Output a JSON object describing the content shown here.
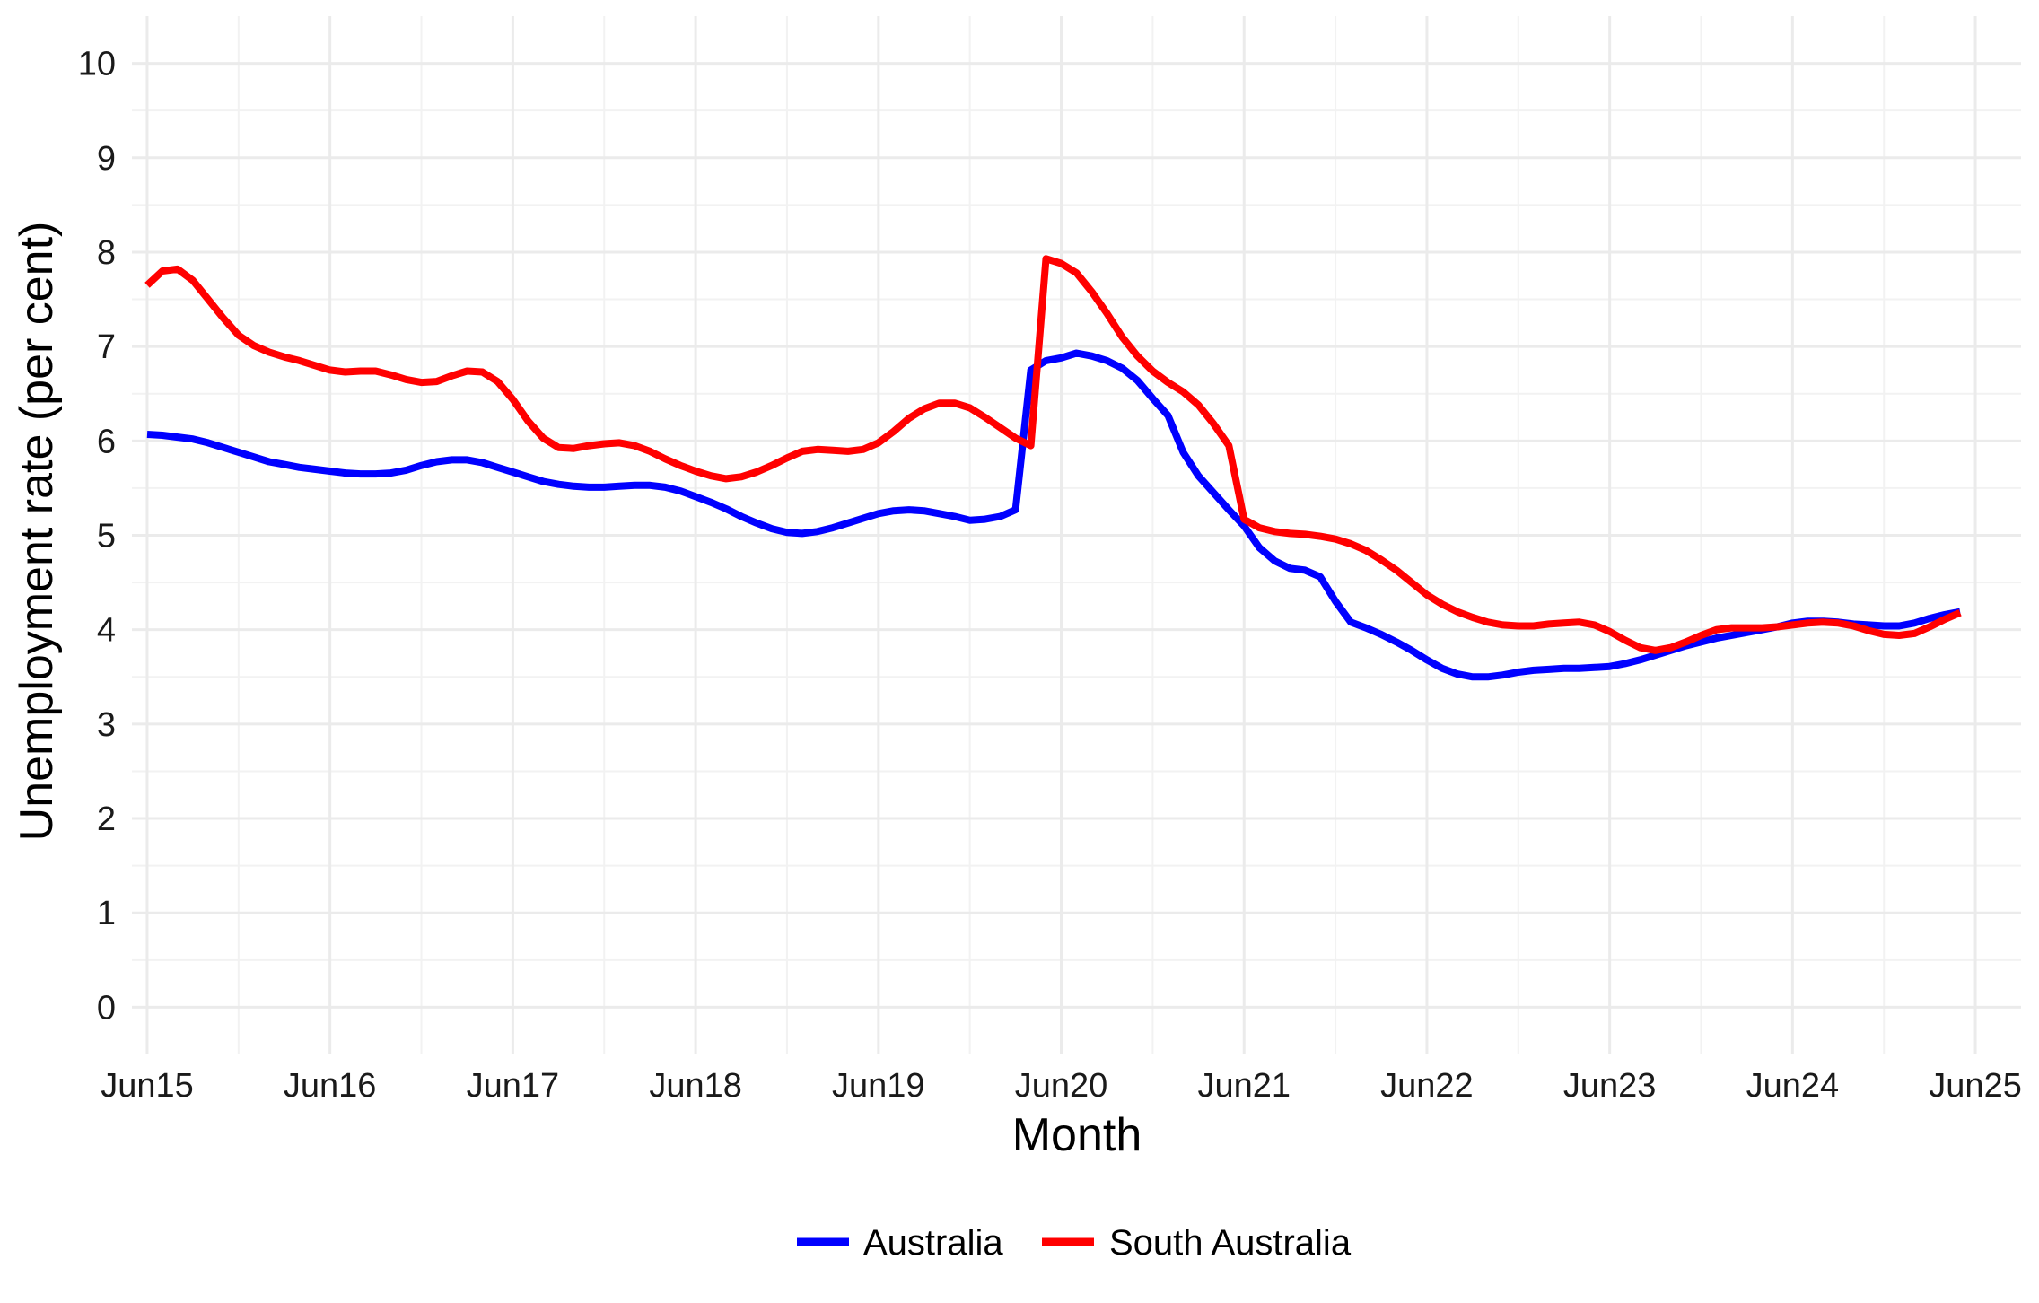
{
  "chart_data": {
    "type": "line",
    "title": "",
    "xlabel": "Month",
    "ylabel": "Unemployment rate (per cent)",
    "x_ticks": [
      "Jun15",
      "Jun16",
      "Jun17",
      "Jun18",
      "Jun19",
      "Jun20",
      "Jun21",
      "Jun22",
      "Jun23",
      "Jun24",
      "Jun25"
    ],
    "y_ticks": [
      "0",
      "1",
      "2",
      "3",
      "4",
      "5",
      "6",
      "7",
      "8",
      "9",
      "10"
    ],
    "xlim": [
      "2015-05",
      "2025-09"
    ],
    "ylim": [
      -0.5,
      10.5
    ],
    "grid": true,
    "legend_position": "bottom",
    "series": [
      {
        "name": "Australia",
        "color": "#0000ff",
        "points": [
          [
            "2015-06",
            6.07
          ],
          [
            "2015-07",
            6.06
          ],
          [
            "2015-08",
            6.04
          ],
          [
            "2015-09",
            6.02
          ],
          [
            "2015-10",
            5.98
          ],
          [
            "2015-11",
            5.93
          ],
          [
            "2015-12",
            5.88
          ],
          [
            "2016-01",
            5.83
          ],
          [
            "2016-02",
            5.78
          ],
          [
            "2016-03",
            5.75
          ],
          [
            "2016-04",
            5.72
          ],
          [
            "2016-05",
            5.7
          ],
          [
            "2016-06",
            5.68
          ],
          [
            "2016-07",
            5.66
          ],
          [
            "2016-08",
            5.65
          ],
          [
            "2016-09",
            5.65
          ],
          [
            "2016-10",
            5.66
          ],
          [
            "2016-11",
            5.69
          ],
          [
            "2016-12",
            5.74
          ],
          [
            "2017-01",
            5.78
          ],
          [
            "2017-02",
            5.8
          ],
          [
            "2017-03",
            5.8
          ],
          [
            "2017-04",
            5.77
          ],
          [
            "2017-05",
            5.72
          ],
          [
            "2017-06",
            5.67
          ],
          [
            "2017-07",
            5.62
          ],
          [
            "2017-08",
            5.57
          ],
          [
            "2017-09",
            5.54
          ],
          [
            "2017-10",
            5.52
          ],
          [
            "2017-11",
            5.51
          ],
          [
            "2017-12",
            5.51
          ],
          [
            "2018-01",
            5.52
          ],
          [
            "2018-02",
            5.53
          ],
          [
            "2018-03",
            5.53
          ],
          [
            "2018-04",
            5.51
          ],
          [
            "2018-05",
            5.47
          ],
          [
            "2018-06",
            5.41
          ],
          [
            "2018-07",
            5.35
          ],
          [
            "2018-08",
            5.28
          ],
          [
            "2018-09",
            5.2
          ],
          [
            "2018-10",
            5.13
          ],
          [
            "2018-11",
            5.07
          ],
          [
            "2018-12",
            5.03
          ],
          [
            "2019-01",
            5.02
          ],
          [
            "2019-02",
            5.04
          ],
          [
            "2019-03",
            5.08
          ],
          [
            "2019-04",
            5.13
          ],
          [
            "2019-05",
            5.18
          ],
          [
            "2019-06",
            5.23
          ],
          [
            "2019-07",
            5.26
          ],
          [
            "2019-08",
            5.27
          ],
          [
            "2019-09",
            5.26
          ],
          [
            "2019-10",
            5.23
          ],
          [
            "2019-11",
            5.2
          ],
          [
            "2019-12",
            5.16
          ],
          [
            "2020-01",
            5.17
          ],
          [
            "2020-02",
            5.2
          ],
          [
            "2020-03",
            5.27
          ],
          [
            "2020-04",
            6.75
          ],
          [
            "2020-05",
            6.85
          ],
          [
            "2020-06",
            6.88
          ],
          [
            "2020-07",
            6.93
          ],
          [
            "2020-08",
            6.9
          ],
          [
            "2020-09",
            6.85
          ],
          [
            "2020-10",
            6.77
          ],
          [
            "2020-11",
            6.64
          ],
          [
            "2020-12",
            6.45
          ],
          [
            "2021-01",
            6.27
          ],
          [
            "2021-02",
            5.88
          ],
          [
            "2021-03",
            5.63
          ],
          [
            "2021-04",
            5.45
          ],
          [
            "2021-05",
            5.27
          ],
          [
            "2021-06",
            5.1
          ],
          [
            "2021-07",
            4.87
          ],
          [
            "2021-08",
            4.73
          ],
          [
            "2021-09",
            4.65
          ],
          [
            "2021-10",
            4.63
          ],
          [
            "2021-11",
            4.56
          ],
          [
            "2021-12",
            4.3
          ],
          [
            "2022-01",
            4.08
          ],
          [
            "2022-02",
            4.02
          ],
          [
            "2022-03",
            3.95
          ],
          [
            "2022-04",
            3.87
          ],
          [
            "2022-05",
            3.78
          ],
          [
            "2022-06",
            3.68
          ],
          [
            "2022-07",
            3.59
          ],
          [
            "2022-08",
            3.53
          ],
          [
            "2022-09",
            3.5
          ],
          [
            "2022-10",
            3.5
          ],
          [
            "2022-11",
            3.52
          ],
          [
            "2022-12",
            3.55
          ],
          [
            "2023-01",
            3.57
          ],
          [
            "2023-02",
            3.58
          ],
          [
            "2023-03",
            3.59
          ],
          [
            "2023-04",
            3.59
          ],
          [
            "2023-05",
            3.6
          ],
          [
            "2023-06",
            3.61
          ],
          [
            "2023-07",
            3.64
          ],
          [
            "2023-08",
            3.68
          ],
          [
            "2023-09",
            3.73
          ],
          [
            "2023-10",
            3.78
          ],
          [
            "2023-11",
            3.83
          ],
          [
            "2023-12",
            3.87
          ],
          [
            "2024-01",
            3.91
          ],
          [
            "2024-02",
            3.94
          ],
          [
            "2024-03",
            3.97
          ],
          [
            "2024-04",
            4.0
          ],
          [
            "2024-05",
            4.03
          ],
          [
            "2024-06",
            4.07
          ],
          [
            "2024-07",
            4.09
          ],
          [
            "2024-08",
            4.09
          ],
          [
            "2024-09",
            4.08
          ],
          [
            "2024-10",
            4.06
          ],
          [
            "2024-11",
            4.05
          ],
          [
            "2024-12",
            4.04
          ],
          [
            "2025-01",
            4.04
          ],
          [
            "2025-02",
            4.07
          ],
          [
            "2025-03",
            4.12
          ],
          [
            "2025-04",
            4.16
          ],
          [
            "2025-05",
            4.19
          ]
        ]
      },
      {
        "name": "South Australia",
        "color": "#ff0000",
        "points": [
          [
            "2015-06",
            7.65
          ],
          [
            "2015-07",
            7.8
          ],
          [
            "2015-08",
            7.82
          ],
          [
            "2015-09",
            7.7
          ],
          [
            "2015-10",
            7.5
          ],
          [
            "2015-11",
            7.3
          ],
          [
            "2015-12",
            7.12
          ],
          [
            "2016-01",
            7.01
          ],
          [
            "2016-02",
            6.94
          ],
          [
            "2016-03",
            6.89
          ],
          [
            "2016-04",
            6.85
          ],
          [
            "2016-05",
            6.8
          ],
          [
            "2016-06",
            6.75
          ],
          [
            "2016-07",
            6.73
          ],
          [
            "2016-08",
            6.74
          ],
          [
            "2016-09",
            6.74
          ],
          [
            "2016-10",
            6.7
          ],
          [
            "2016-11",
            6.65
          ],
          [
            "2016-12",
            6.62
          ],
          [
            "2017-01",
            6.63
          ],
          [
            "2017-02",
            6.69
          ],
          [
            "2017-03",
            6.74
          ],
          [
            "2017-04",
            6.73
          ],
          [
            "2017-05",
            6.63
          ],
          [
            "2017-06",
            6.44
          ],
          [
            "2017-07",
            6.21
          ],
          [
            "2017-08",
            6.03
          ],
          [
            "2017-09",
            5.93
          ],
          [
            "2017-10",
            5.92
          ],
          [
            "2017-11",
            5.95
          ],
          [
            "2017-12",
            5.97
          ],
          [
            "2018-01",
            5.98
          ],
          [
            "2018-02",
            5.95
          ],
          [
            "2018-03",
            5.89
          ],
          [
            "2018-04",
            5.81
          ],
          [
            "2018-05",
            5.74
          ],
          [
            "2018-06",
            5.68
          ],
          [
            "2018-07",
            5.63
          ],
          [
            "2018-08",
            5.6
          ],
          [
            "2018-09",
            5.62
          ],
          [
            "2018-10",
            5.67
          ],
          [
            "2018-11",
            5.74
          ],
          [
            "2018-12",
            5.82
          ],
          [
            "2019-01",
            5.89
          ],
          [
            "2019-02",
            5.91
          ],
          [
            "2019-03",
            5.9
          ],
          [
            "2019-04",
            5.89
          ],
          [
            "2019-05",
            5.91
          ],
          [
            "2019-06",
            5.98
          ],
          [
            "2019-07",
            6.1
          ],
          [
            "2019-08",
            6.24
          ],
          [
            "2019-09",
            6.34
          ],
          [
            "2019-10",
            6.4
          ],
          [
            "2019-11",
            6.4
          ],
          [
            "2019-12",
            6.35
          ],
          [
            "2020-01",
            6.25
          ],
          [
            "2020-02",
            6.14
          ],
          [
            "2020-03",
            6.03
          ],
          [
            "2020-04",
            5.95
          ],
          [
            "2020-05",
            7.93
          ],
          [
            "2020-06",
            7.88
          ],
          [
            "2020-07",
            7.78
          ],
          [
            "2020-08",
            7.58
          ],
          [
            "2020-09",
            7.35
          ],
          [
            "2020-10",
            7.1
          ],
          [
            "2020-11",
            6.9
          ],
          [
            "2020-12",
            6.74
          ],
          [
            "2021-01",
            6.62
          ],
          [
            "2021-02",
            6.52
          ],
          [
            "2021-03",
            6.38
          ],
          [
            "2021-04",
            6.18
          ],
          [
            "2021-05",
            5.95
          ],
          [
            "2021-06",
            5.17
          ],
          [
            "2021-07",
            5.08
          ],
          [
            "2021-08",
            5.04
          ],
          [
            "2021-09",
            5.02
          ],
          [
            "2021-10",
            5.01
          ],
          [
            "2021-11",
            4.99
          ],
          [
            "2021-12",
            4.96
          ],
          [
            "2022-01",
            4.91
          ],
          [
            "2022-02",
            4.84
          ],
          [
            "2022-03",
            4.74
          ],
          [
            "2022-04",
            4.63
          ],
          [
            "2022-05",
            4.5
          ],
          [
            "2022-06",
            4.37
          ],
          [
            "2022-07",
            4.27
          ],
          [
            "2022-08",
            4.19
          ],
          [
            "2022-09",
            4.13
          ],
          [
            "2022-10",
            4.08
          ],
          [
            "2022-11",
            4.05
          ],
          [
            "2022-12",
            4.04
          ],
          [
            "2023-01",
            4.04
          ],
          [
            "2023-02",
            4.06
          ],
          [
            "2023-03",
            4.07
          ],
          [
            "2023-04",
            4.08
          ],
          [
            "2023-05",
            4.05
          ],
          [
            "2023-06",
            3.98
          ],
          [
            "2023-07",
            3.89
          ],
          [
            "2023-08",
            3.81
          ],
          [
            "2023-09",
            3.78
          ],
          [
            "2023-10",
            3.81
          ],
          [
            "2023-11",
            3.87
          ],
          [
            "2023-12",
            3.94
          ],
          [
            "2024-01",
            4.0
          ],
          [
            "2024-02",
            4.02
          ],
          [
            "2024-03",
            4.02
          ],
          [
            "2024-04",
            4.02
          ],
          [
            "2024-05",
            4.03
          ],
          [
            "2024-06",
            4.05
          ],
          [
            "2024-07",
            4.07
          ],
          [
            "2024-08",
            4.08
          ],
          [
            "2024-09",
            4.07
          ],
          [
            "2024-10",
            4.04
          ],
          [
            "2024-11",
            3.99
          ],
          [
            "2024-12",
            3.95
          ],
          [
            "2025-01",
            3.94
          ],
          [
            "2025-02",
            3.96
          ],
          [
            "2025-03",
            4.03
          ],
          [
            "2025-04",
            4.11
          ],
          [
            "2025-05",
            4.18
          ]
        ]
      }
    ]
  }
}
